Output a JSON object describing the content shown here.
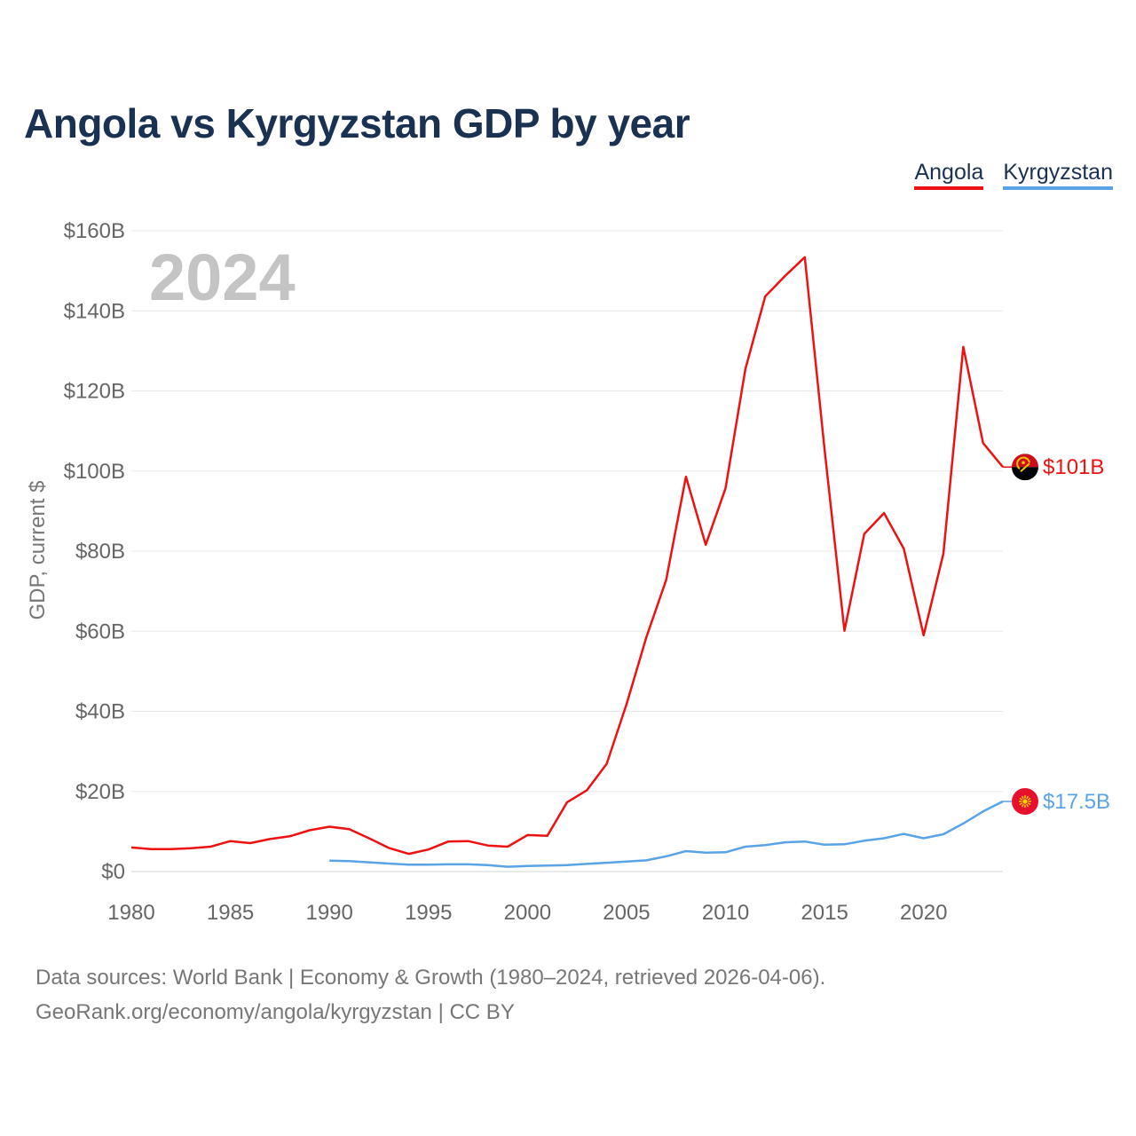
{
  "title": "Angola vs Kyrgyzstan GDP by year",
  "legend": [
    {
      "label": "Angola",
      "color": "#ee1111"
    },
    {
      "label": "Kyrgyzstan",
      "color": "#5aa3e6"
    }
  ],
  "year_watermark": "2024",
  "footer": {
    "line1": "Data sources: World Bank | Economy & Growth (1980–2024, retrieved 2026-04-06).",
    "line2": "GeoRank.org/economy/angola/kyrgyzstan | CC BY"
  },
  "chart_data": {
    "type": "line",
    "title": "Angola vs Kyrgyzstan GDP by year",
    "ylabel": "GDP, current $",
    "xlabel": "",
    "xlim": [
      1980,
      2024
    ],
    "ylim": [
      0,
      160
    ],
    "y_unit": "billions of current US$",
    "x_ticks": [
      1980,
      1985,
      1990,
      1995,
      2000,
      2005,
      2010,
      2015,
      2020
    ],
    "x_tick_labels": [
      "1980",
      "1985",
      "1990",
      "1995",
      "2000",
      "2005",
      "2010",
      "2015",
      "2020"
    ],
    "y_ticks": [
      0,
      20,
      40,
      60,
      80,
      100,
      120,
      140,
      160
    ],
    "y_tick_labels": [
      "$0",
      "$20B",
      "$40B",
      "$60B",
      "$80B",
      "$100B",
      "$120B",
      "$140B",
      "$160B"
    ],
    "grid": true,
    "series": [
      {
        "name": "Angola",
        "color": "#ee1111",
        "end_label": "$101B",
        "x": [
          1980,
          1981,
          1982,
          1983,
          1984,
          1985,
          1986,
          1987,
          1988,
          1989,
          1990,
          1991,
          1992,
          1993,
          1994,
          1995,
          1996,
          1997,
          1998,
          1999,
          2000,
          2001,
          2002,
          2003,
          2004,
          2005,
          2006,
          2007,
          2008,
          2009,
          2010,
          2011,
          2012,
          2013,
          2014,
          2015,
          2016,
          2017,
          2018,
          2019,
          2020,
          2021,
          2022,
          2023,
          2024
        ],
        "values": [
          6.0,
          5.6,
          5.6,
          5.8,
          6.2,
          7.6,
          7.1,
          8.1,
          8.8,
          10.3,
          11.2,
          10.6,
          8.3,
          5.9,
          4.4,
          5.5,
          7.5,
          7.6,
          6.5,
          6.2,
          9.1,
          8.9,
          17.3,
          20.3,
          26.9,
          41.8,
          58.5,
          72.8,
          98.6,
          81.6,
          95.7,
          125.5,
          143.6,
          148.7,
          153.4,
          105.4,
          60.1,
          84.3,
          89.5,
          80.6,
          59.0,
          79.4,
          131.0,
          107.0,
          101.0
        ]
      },
      {
        "name": "Kyrgyzstan",
        "color": "#5aa3e6",
        "end_label": "$17.5B",
        "x": [
          1990,
          1991,
          1992,
          1993,
          1994,
          1995,
          1996,
          1997,
          1998,
          1999,
          2000,
          2001,
          2002,
          2003,
          2004,
          2005,
          2006,
          2007,
          2008,
          2009,
          2010,
          2011,
          2012,
          2013,
          2014,
          2015,
          2016,
          2017,
          2018,
          2019,
          2020,
          2021,
          2022,
          2023,
          2024
        ],
        "values": [
          2.7,
          2.6,
          2.3,
          2.0,
          1.7,
          1.7,
          1.8,
          1.8,
          1.6,
          1.2,
          1.4,
          1.5,
          1.6,
          1.9,
          2.2,
          2.5,
          2.8,
          3.8,
          5.1,
          4.7,
          4.8,
          6.2,
          6.6,
          7.3,
          7.5,
          6.7,
          6.8,
          7.7,
          8.3,
          9.4,
          8.3,
          9.3,
          12.0,
          15.0,
          17.5
        ]
      }
    ]
  }
}
